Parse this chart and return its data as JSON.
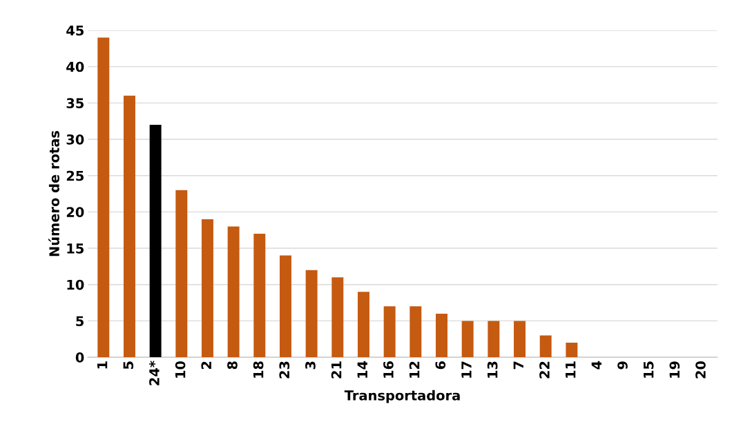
{
  "chart_data": {
    "type": "bar",
    "xlabel": "Transportadora",
    "ylabel": "Número de rotas",
    "categories": [
      "1",
      "5",
      "24*",
      "10",
      "2",
      "8",
      "18",
      "23",
      "3",
      "21",
      "14",
      "16",
      "12",
      "6",
      "17",
      "13",
      "7",
      "22",
      "11",
      "4",
      "9",
      "15",
      "19",
      "20"
    ],
    "values": [
      44,
      36,
      32,
      23,
      19,
      18,
      17,
      14,
      12,
      11,
      9,
      7,
      7,
      6,
      5,
      5,
      5,
      3,
      2,
      0,
      0,
      0,
      0,
      0
    ],
    "colors": [
      "#c55a11",
      "#c55a11",
      "#000000",
      "#c55a11",
      "#c55a11",
      "#c55a11",
      "#c55a11",
      "#c55a11",
      "#c55a11",
      "#c55a11",
      "#c55a11",
      "#c55a11",
      "#c55a11",
      "#c55a11",
      "#c55a11",
      "#c55a11",
      "#c55a11",
      "#c55a11",
      "#c55a11",
      "#c55a11",
      "#c55a11",
      "#c55a11",
      "#c55a11",
      "#c55a11"
    ],
    "ylim": [
      0,
      45
    ],
    "yticks": [
      0,
      5,
      10,
      15,
      20,
      25,
      30,
      35,
      40,
      45
    ],
    "grid": "y"
  }
}
